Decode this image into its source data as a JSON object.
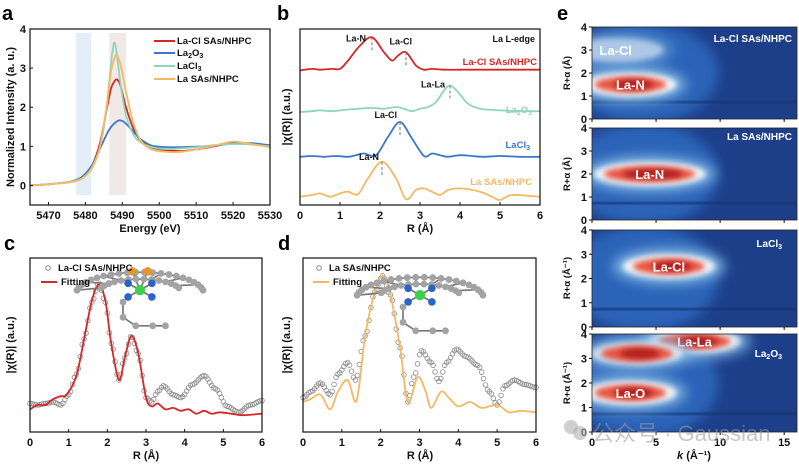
{
  "panels": {
    "a": "a",
    "b": "b",
    "c": "c",
    "d": "d",
    "e": "e"
  },
  "chart_data": [
    {
      "id": "a",
      "type": "line",
      "title": "",
      "xlabel": "Energy (eV)",
      "ylabel": "Normalized Intensity (a. u.)",
      "xlim": [
        5465,
        5530
      ],
      "ylim": [
        -0.5,
        4
      ],
      "xticks": [
        5470,
        5480,
        5490,
        5500,
        5510,
        5520,
        5530
      ],
      "yticks": [
        0,
        1,
        2,
        3,
        4
      ],
      "legend_position": "top-right",
      "shaded_regions": [
        {
          "x": [
            5477.5,
            5481.5
          ],
          "color": "#e4eef8"
        },
        {
          "x": [
            5486.5,
            5491
          ],
          "color": "#f1e8e8"
        }
      ],
      "series": [
        {
          "name": "La-Cl SAs/NHPC",
          "color": "#d62728",
          "x": [
            5465,
            5470,
            5475,
            5478,
            5480,
            5482,
            5484,
            5486,
            5487,
            5488,
            5488.7,
            5489.5,
            5491,
            5493,
            5495,
            5498,
            5502,
            5506,
            5510,
            5515,
            5520,
            5525,
            5530
          ],
          "y": [
            0,
            0.03,
            0.08,
            0.15,
            0.28,
            0.55,
            1.1,
            2.05,
            2.5,
            2.68,
            2.7,
            2.55,
            2.0,
            1.45,
            1.15,
            0.97,
            0.9,
            0.88,
            0.92,
            1.0,
            1.08,
            1.05,
            1.0
          ]
        },
        {
          "name": "La2O3",
          "color": "#3a78c9",
          "x": [
            5465,
            5470,
            5475,
            5478,
            5480,
            5482,
            5484,
            5486,
            5487,
            5488,
            5489,
            5490,
            5491,
            5493,
            5495,
            5498,
            5502,
            5506,
            5510,
            5515,
            5520,
            5525,
            5530
          ],
          "y": [
            0,
            0.03,
            0.08,
            0.16,
            0.3,
            0.55,
            0.95,
            1.35,
            1.5,
            1.6,
            1.66,
            1.65,
            1.58,
            1.38,
            1.18,
            1.02,
            0.98,
            0.98,
            0.99,
            1.02,
            1.07,
            1.08,
            1.03
          ]
        },
        {
          "name": "LaCl3",
          "color": "#8fd6b6",
          "x": [
            5465,
            5470,
            5475,
            5478,
            5480,
            5482,
            5484,
            5485.5,
            5486.5,
            5487.3,
            5487.9,
            5488.6,
            5489.5,
            5491,
            5493,
            5495,
            5498,
            5502,
            5506,
            5510,
            5515,
            5520,
            5525,
            5530
          ],
          "y": [
            0,
            0.03,
            0.08,
            0.14,
            0.25,
            0.5,
            1.0,
            1.8,
            2.7,
            3.4,
            3.65,
            3.3,
            2.6,
            1.8,
            1.3,
            1.1,
            0.98,
            0.93,
            0.95,
            0.98,
            1.03,
            1.06,
            1.05,
            1.0
          ]
        },
        {
          "name": "La SAs/NHPC",
          "color": "#f5b964",
          "x": [
            5465,
            5470,
            5475,
            5478,
            5480,
            5482,
            5484,
            5486,
            5487,
            5488,
            5488.5,
            5489.5,
            5491,
            5493,
            5495,
            5498,
            5502,
            5506,
            5510,
            5515,
            5520,
            5525,
            5530
          ],
          "y": [
            0,
            0.03,
            0.07,
            0.13,
            0.24,
            0.48,
            1.0,
            2.2,
            2.95,
            3.28,
            3.32,
            3.1,
            2.4,
            1.6,
            1.15,
            0.92,
            0.86,
            0.86,
            0.92,
            1.02,
            1.12,
            1.06,
            0.98
          ]
        }
      ],
      "legend": [
        "La-Cl SAs/NHPC",
        "La2O3",
        "LaCl3",
        "La SAs/NHPC"
      ]
    },
    {
      "id": "b",
      "type": "line",
      "title": "La  L-edge",
      "xlabel": "R (Å)",
      "ylabel": "|χ(R)| (a.u.)",
      "xlim": [
        0,
        6
      ],
      "xticks": [
        0,
        1,
        2,
        3,
        4,
        5,
        6
      ],
      "note": "stacked offset spectra, arbitrary units (0-100 scale within panel)",
      "series": [
        {
          "name": "La-Cl SAs/NHPC",
          "color": "#d62728",
          "x": [
            0,
            0.3,
            0.5,
            0.8,
            1.0,
            1.2,
            1.5,
            1.8,
            2.1,
            2.3,
            2.45,
            2.65,
            2.9,
            3.1,
            3.3,
            3.6,
            4,
            4.5,
            5,
            5.5,
            6
          ],
          "y": [
            78,
            79,
            78.5,
            79,
            79,
            84,
            93,
            98,
            89,
            84,
            87,
            89,
            81,
            78.5,
            79,
            78.5,
            78.5,
            78.5,
            78.5,
            78.5,
            78.5
          ]
        },
        {
          "name": "La2O3",
          "color": "#8fd6b6",
          "x": [
            0,
            0.3,
            0.5,
            0.8,
            1.0,
            1.2,
            1.5,
            1.8,
            2.1,
            2.4,
            2.6,
            2.8,
            3.0,
            3.2,
            3.4,
            3.6,
            3.75,
            3.95,
            4.2,
            4.5,
            5,
            5.5,
            6
          ],
          "y": [
            53,
            53.5,
            54,
            53.5,
            54,
            54.5,
            55,
            55.5,
            55,
            56,
            55,
            53.5,
            55,
            56,
            59,
            66,
            69,
            65,
            58,
            55,
            54,
            53.5,
            53.5
          ]
        },
        {
          "name": "LaCl3",
          "color": "#3a78c9",
          "x": [
            0,
            0.3,
            0.6,
            0.9,
            1.2,
            1.4,
            1.6,
            1.9,
            2.2,
            2.5,
            2.8,
            3.1,
            3.3,
            3.5,
            3.7,
            4,
            4.3,
            4.6,
            5,
            5.5,
            6
          ],
          "y": [
            26,
            26.5,
            26,
            26.5,
            26,
            27,
            28,
            27,
            38,
            47,
            37,
            26.5,
            28,
            27,
            26,
            27,
            26.5,
            26,
            26.5,
            26,
            26
          ]
        },
        {
          "name": "La SAs/NHPC",
          "color": "#f5b964",
          "x": [
            0,
            0.3,
            0.5,
            0.75,
            1.0,
            1.2,
            1.45,
            1.7,
            2.05,
            2.4,
            2.65,
            2.9,
            3.1,
            3.3,
            3.5,
            3.7,
            4.0,
            4.5,
            4.8,
            5.0,
            5.3,
            6
          ],
          "y": [
            2,
            3,
            4,
            2,
            4,
            5,
            3.5,
            13,
            23,
            13,
            0.5,
            6,
            7,
            5,
            3,
            6,
            7,
            5,
            2,
            0,
            3,
            2
          ]
        }
      ],
      "annotations": [
        {
          "text": "La-N",
          "x": 1.8,
          "series": "La-Cl SAs/NHPC"
        },
        {
          "text": "La-Cl",
          "x": 2.65,
          "series": "La-Cl SAs/NHPC"
        },
        {
          "text": "La-La",
          "x": 3.75,
          "series": "La2O3"
        },
        {
          "text": "La-Cl",
          "x": 2.5,
          "series": "LaCl3"
        },
        {
          "text": "La-N",
          "x": 2.05,
          "series": "La SAs/NHPC"
        }
      ],
      "series_labels": [
        "La-Cl SAs/NHPC",
        "La2O3",
        "LaCl3",
        "La SAs/NHPC"
      ]
    },
    {
      "id": "c",
      "type": "line",
      "xlabel": "R (Å)",
      "ylabel": "|χ(R)| (a.u.)",
      "xlim": [
        0,
        6
      ],
      "xticks": [
        0,
        1,
        2,
        3,
        4,
        5,
        6
      ],
      "legend_position": "top-left",
      "legend": [
        "La-Cl SAs/NHPC",
        "Fitting"
      ],
      "series": [
        {
          "name": "La-Cl SAs/NHPC",
          "style": "open-circles",
          "color": "#8a8a8a",
          "x": [
            0,
            0.2,
            0.4,
            0.6,
            0.8,
            1.0,
            1.2,
            1.4,
            1.6,
            1.78,
            1.95,
            2.1,
            2.3,
            2.45,
            2.62,
            2.8,
            3.0,
            3.15,
            3.3,
            3.45,
            3.7,
            3.9,
            4.2,
            4.5,
            4.8,
            5.1,
            5.4,
            5.7,
            6
          ],
          "y": [
            14,
            13,
            14,
            15,
            13,
            20,
            34,
            58,
            83,
            96,
            83,
            55,
            30,
            45,
            60,
            48,
            18,
            15,
            22,
            26,
            20,
            18,
            27,
            33,
            24,
            12,
            8,
            13,
            16
          ]
        },
        {
          "name": "Fitting",
          "style": "line",
          "color": "#d62728",
          "x": [
            0,
            0.2,
            0.4,
            0.6,
            0.8,
            0.95,
            1.2,
            1.4,
            1.6,
            1.78,
            1.95,
            2.1,
            2.3,
            2.45,
            2.62,
            2.8,
            3.0,
            3.15,
            3.3,
            3.5,
            3.7,
            3.9,
            4.1,
            4.3,
            4.5,
            4.7,
            4.9,
            5.2,
            5.5,
            6
          ],
          "y": [
            10,
            13,
            13,
            17,
            19,
            20,
            33,
            58,
            84,
            95,
            84,
            55,
            30,
            45,
            60,
            48,
            18,
            12,
            14,
            10,
            11,
            9,
            10,
            7,
            9,
            7,
            8,
            7,
            6,
            7
          ]
        }
      ]
    },
    {
      "id": "d",
      "type": "line",
      "xlabel": "R (Å)",
      "ylabel": "|χ(R)| (a.u.)",
      "xlim": [
        0,
        6
      ],
      "xticks": [
        0,
        1,
        2,
        3,
        4,
        5,
        6
      ],
      "legend_position": "top-left",
      "legend": [
        "La SAs/NHPC",
        "Fitting"
      ],
      "series": [
        {
          "name": "La SAs/NHPC",
          "style": "open-circles",
          "color": "#8a8a8a",
          "x": [
            0,
            0.2,
            0.45,
            0.7,
            0.9,
            1.15,
            1.35,
            1.6,
            1.85,
            2.05,
            2.25,
            2.5,
            2.7,
            2.85,
            3.05,
            3.3,
            3.5,
            3.7,
            3.95,
            4.2,
            4.5,
            4.8,
            5.0,
            5.2,
            5.45,
            5.7,
            6
          ],
          "y": [
            18,
            22,
            28,
            20,
            34,
            42,
            30,
            60,
            90,
            101,
            88,
            52,
            15,
            32,
            50,
            42,
            29,
            42,
            51,
            46,
            40,
            22,
            13,
            26,
            30,
            27,
            25
          ]
        },
        {
          "name": "Fitting",
          "style": "line",
          "color": "#f5b964",
          "x": [
            0,
            0.2,
            0.45,
            0.7,
            0.9,
            1.15,
            1.38,
            1.6,
            1.85,
            2.05,
            2.25,
            2.5,
            2.7,
            2.95,
            3.15,
            3.3,
            3.55,
            3.75,
            4.0,
            4.3,
            4.6,
            5.0,
            5.3,
            5.6,
            6
          ],
          "y": [
            15,
            17,
            20,
            10,
            22,
            30,
            16,
            60,
            90,
            101,
            88,
            52,
            15,
            32,
            23,
            11,
            22,
            18,
            12,
            15,
            11,
            13,
            8,
            9,
            8
          ]
        }
      ]
    },
    {
      "id": "e",
      "type": "heatmap",
      "xlabel": "k (Å⁻¹)",
      "ylabel": "R+α (Å)",
      "xlim": [
        0,
        16
      ],
      "xticks": [
        0,
        5,
        10,
        15
      ],
      "ylim": [
        0,
        4
      ],
      "yticks": [
        0,
        1,
        2,
        3,
        4
      ],
      "colormap": [
        "#1d3f8a",
        "#2b63b8",
        "#7fb3e0",
        "#f4f8fc",
        "#f2a488",
        "#d73027",
        "#8a0f0f"
      ],
      "subplots": [
        {
          "name": "La-Cl SAs/NHPC",
          "ylabel": "R+α (Å)",
          "features": [
            {
              "label": "La-N",
              "k": 3.0,
              "r": 1.5,
              "intensity": 1.0,
              "type": "max"
            },
            {
              "label": "La-Cl",
              "k": 2.0,
              "r": 3.0,
              "intensity": 0.55,
              "type": "max"
            }
          ]
        },
        {
          "name": "La SAs/NHPC",
          "ylabel": "R+α (Å)",
          "features": [
            {
              "label": "La-N",
              "k": 4.5,
              "r": 2.0,
              "intensity": 1.0,
              "type": "max"
            }
          ]
        },
        {
          "name": "LaCl3",
          "ylabel": "R+α (Å⁻¹)",
          "features": [
            {
              "label": "La-Cl",
              "k": 6.0,
              "r": 2.5,
              "intensity": 1.0,
              "type": "max"
            }
          ]
        },
        {
          "name": "La2O3",
          "ylabel": "R+α (Å⁻¹)",
          "features": [
            {
              "label": "La-O",
              "k": 3.0,
              "r": 1.6,
              "intensity": 1.0,
              "type": "max"
            },
            {
              "label": "La-La",
              "k": 8.0,
              "r": 3.7,
              "intensity": 0.9,
              "type": "max"
            },
            {
              "label": "",
              "k": 3.5,
              "r": 3.2,
              "intensity": 0.75,
              "type": "max"
            }
          ]
        }
      ]
    }
  ],
  "text": {
    "a_legend": [
      "La-Cl SAs/NHPC",
      "La",
      "2",
      "O",
      "3",
      "LaCl",
      "3",
      "La SAs/NHPC"
    ],
    "b_title": "La  L-edge",
    "b_label_red": "La-Cl SAs/NHPC",
    "b_label_green_main": "La",
    "b_label_green_sub1": "2",
    "b_label_green_o": "O",
    "b_label_green_sub2": "3",
    "b_label_blue_main": "LaCl",
    "b_label_blue_sub": "3",
    "b_label_orange": "La SAs/NHPC",
    "e_label_1": "La-Cl SAs/NHPC",
    "e_label_2": "La SAs/NHPC",
    "e_label_3_main": "LaCl",
    "e_label_3_sub": "3",
    "e_label_4_main": "La",
    "e_label_4_sub1": "2",
    "e_label_4_o": "O",
    "e_label_4_sub2": "3",
    "e_ylabel_A": "R+α (Å)",
    "e_ylabel_B": "R+α (Å⁻¹)",
    "e_xlabel_k": "k",
    "e_xlabel_unit": " (Å⁻¹)",
    "watermark": "公众号 · Gaussian"
  }
}
